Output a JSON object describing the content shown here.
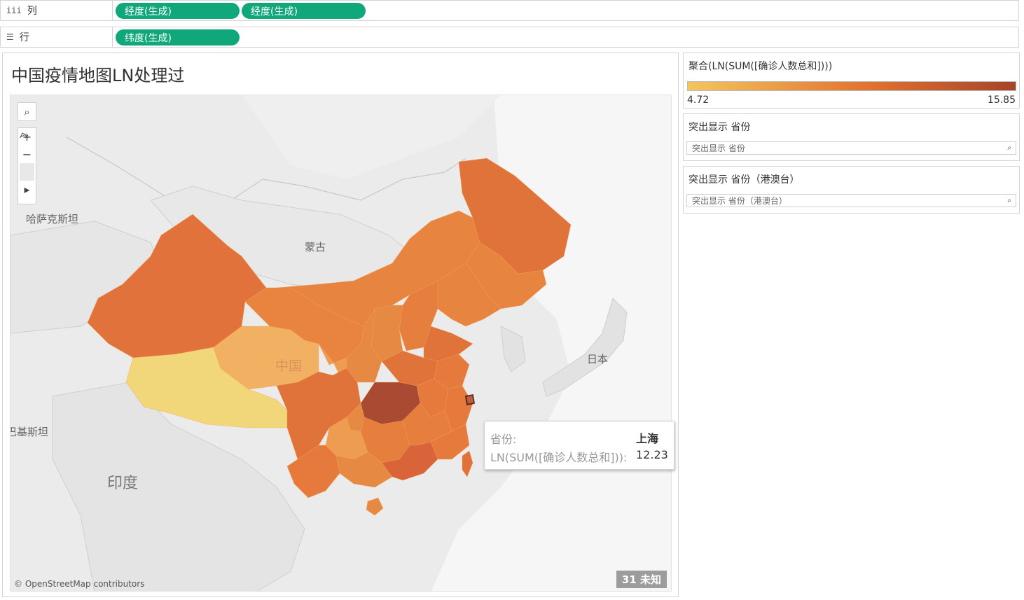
{
  "columns_shelf": {
    "label": "列",
    "icon": "columns-icon",
    "pills": [
      "经度(生成)",
      "经度(生成)"
    ]
  },
  "rows_shelf": {
    "label": "行",
    "icon": "rows-icon",
    "pills": [
      "纬度(生成)"
    ]
  },
  "sheet": {
    "title": "中国疫情地图LN处理过"
  },
  "map": {
    "labels": {
      "kazakhstan": "哈萨克斯坦",
      "mongolia": "蒙古",
      "china": "中国",
      "japan": "日本",
      "pakistan": "巴基斯坦",
      "india": "印度"
    },
    "attribution": "© OpenStreetMap contributors",
    "unknown_badge": "31 未知",
    "tools": {
      "search": "⌕",
      "zoom_in": "+",
      "zoom_out": "−",
      "pan": "▸"
    }
  },
  "tooltip": {
    "field1_label": "省份:",
    "field1_value": "上海",
    "field2_label": "LN(SUM([确诊人数总和])):",
    "field2_value": "12.23"
  },
  "legend": {
    "title": "聚合(LN(SUM([确诊人数总和])))",
    "min": "4.72",
    "max": "15.85",
    "color_low": "#f3c65e",
    "color_mid": "#e2722f",
    "color_high": "#a6442c"
  },
  "highlight1": {
    "title": "突出显示 省份",
    "placeholder": "突出显示 省份"
  },
  "highlight2": {
    "title": "突出显示 省份（港澳台）",
    "placeholder": "突出显示 省份（港澳台）"
  }
}
